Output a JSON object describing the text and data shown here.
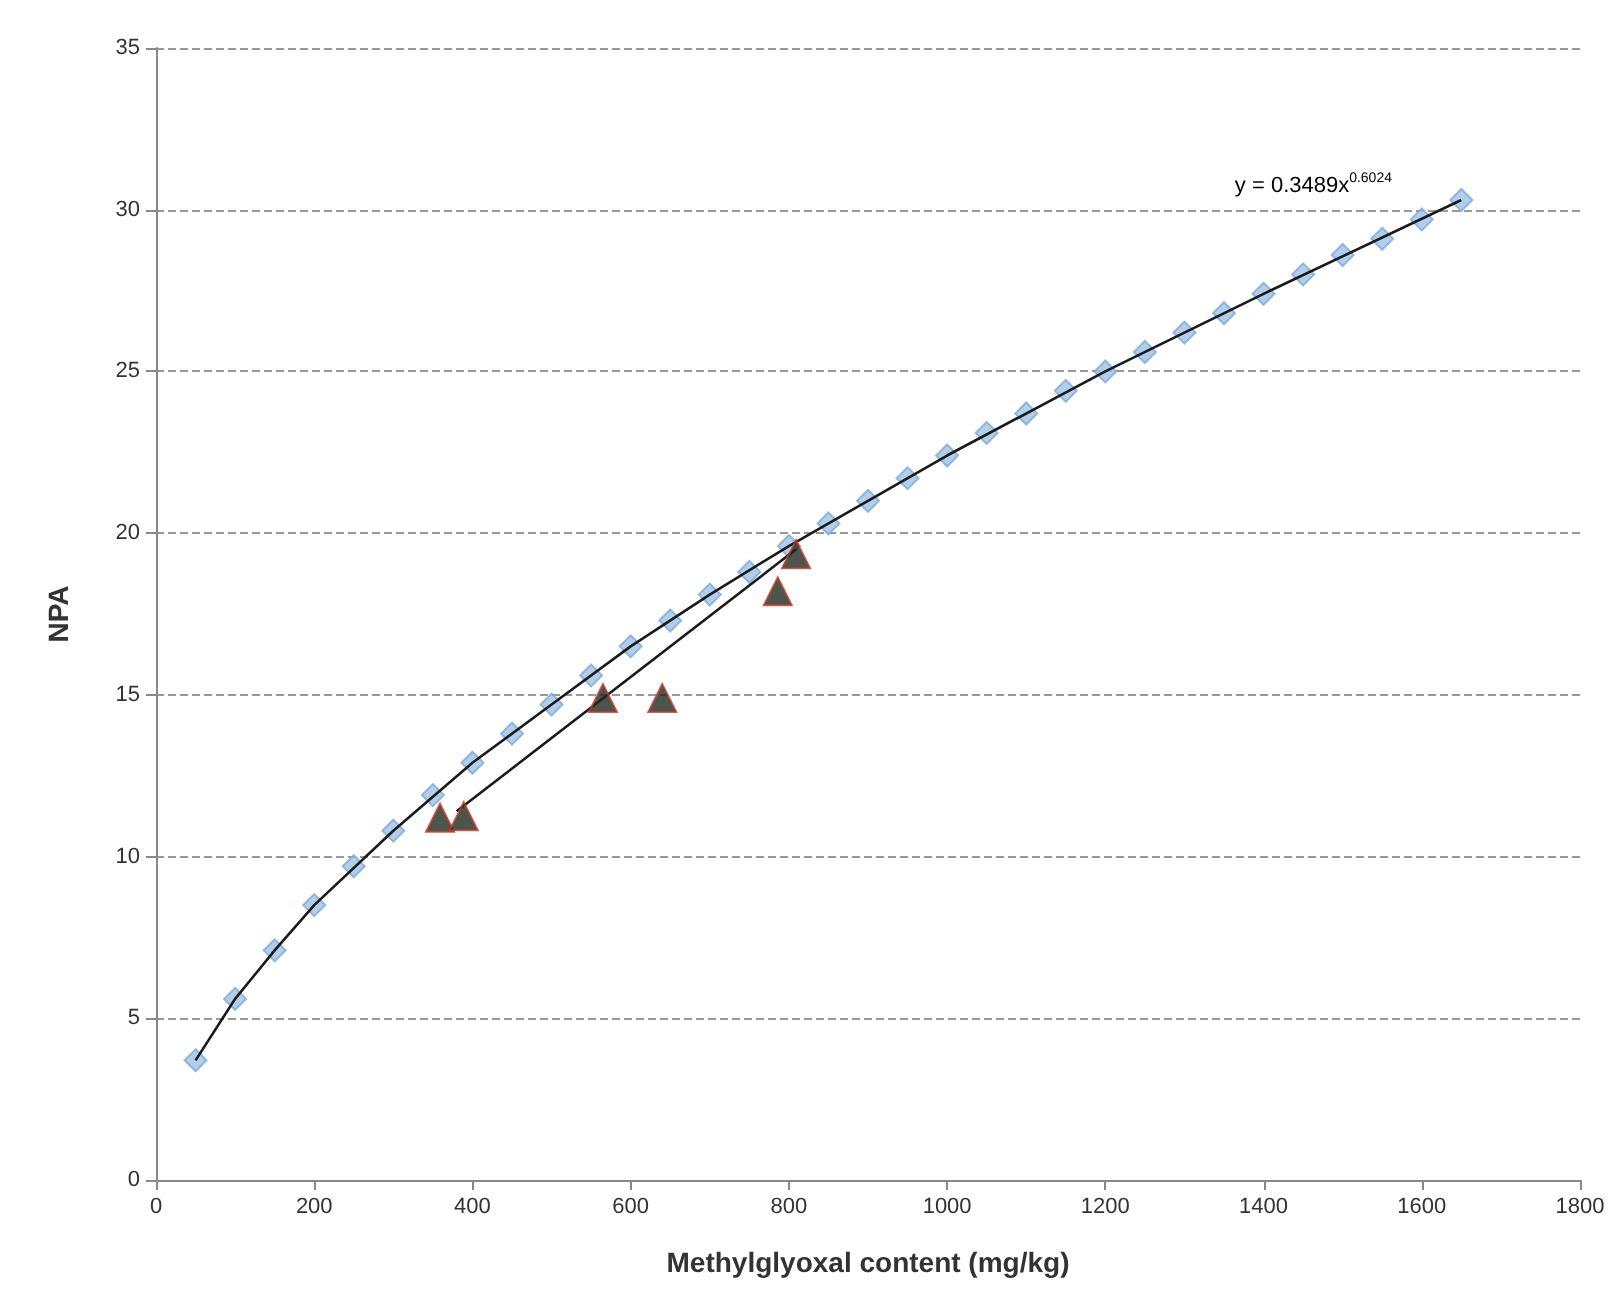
{
  "chart_data": {
    "type": "scatter",
    "xlabel": "Methylglyoxal content (mg/kg)",
    "ylabel": "NPA",
    "xlim": [
      0,
      1800
    ],
    "xticks": [
      0,
      200,
      400,
      600,
      800,
      1000,
      1200,
      1400,
      1600,
      1800
    ],
    "ylim": [
      0,
      35
    ],
    "yticks": [
      0,
      5,
      10,
      15,
      20,
      25,
      30,
      35
    ],
    "grid": "y",
    "series": [
      {
        "marker": "diamond",
        "color": "#9dc3e6",
        "x": [
          50,
          100,
          150,
          200,
          250,
          300,
          350,
          400,
          450,
          500,
          550,
          600,
          650,
          700,
          750,
          800,
          850,
          900,
          950,
          1000,
          1050,
          1100,
          1150,
          1200,
          1250,
          1300,
          1350,
          1400,
          1450,
          1500,
          1550,
          1600,
          1650
        ],
        "values": [
          3.7,
          5.6,
          7.1,
          8.5,
          9.7,
          10.8,
          11.9,
          12.9,
          13.8,
          14.7,
          15.6,
          16.5,
          17.3,
          18.1,
          18.8,
          19.6,
          20.3,
          21.0,
          21.7,
          22.4,
          23.1,
          23.7,
          24.4,
          25.0,
          25.6,
          26.2,
          26.8,
          27.4,
          28.0,
          28.6,
          29.1,
          29.7,
          30.3
        ]
      },
      {
        "type": "line",
        "marker": "none",
        "line_style": "solid",
        "color": "#1a1a1a",
        "x": [
          50,
          100,
          150,
          200,
          300,
          400,
          500,
          600,
          700,
          800,
          900,
          1000,
          1200,
          1400,
          1650
        ],
        "values": [
          3.7,
          5.6,
          7.1,
          8.5,
          10.8,
          12.9,
          14.7,
          16.5,
          18.1,
          19.6,
          21.0,
          22.4,
          25.0,
          27.4,
          30.3
        ]
      },
      {
        "marker": "triangle",
        "color": "#1f2b1f",
        "x": [
          359,
          389,
          565,
          640,
          786,
          809
        ],
        "values": [
          11.2,
          11.25,
          14.9,
          14.9,
          18.2,
          19.35
        ]
      },
      {
        "type": "line",
        "marker": "none",
        "line_style": "solid",
        "color": "#1a1a1a",
        "x": [
          380,
          809
        ],
        "values": [
          11.4,
          19.5
        ]
      }
    ],
    "annotations": [
      "y = 0.3489x$^{0.6024}$"
    ]
  }
}
